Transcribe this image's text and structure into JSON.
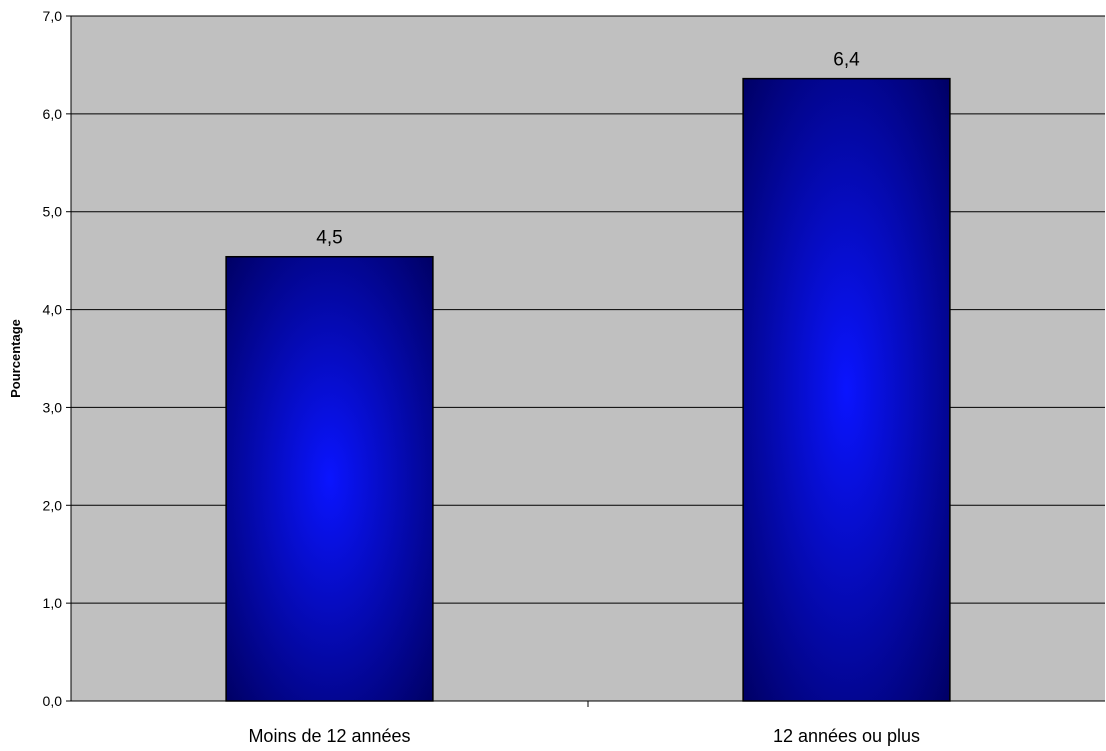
{
  "chart_data": {
    "type": "bar",
    "categories": [
      "Moins de 12 années",
      "12 années ou plus"
    ],
    "values": [
      4.54,
      6.36
    ],
    "data_labels": [
      "4,5",
      "6,4"
    ],
    "title": "",
    "xlabel": "",
    "ylabel": "Pourcentage",
    "ylim": [
      0,
      7
    ],
    "yticks": [
      0,
      1,
      2,
      3,
      4,
      5,
      6,
      7
    ],
    "ytick_labels": [
      "0,0",
      "1,0",
      "2,0",
      "3,0",
      "4,0",
      "5,0",
      "6,0",
      "7,0"
    ],
    "grid": true,
    "legend": "none",
    "colors": {
      "plot_background": "#c0c0c0",
      "bar_center": "#0a14ff",
      "bar_edge": "#000066",
      "gridline": "#000000"
    }
  }
}
